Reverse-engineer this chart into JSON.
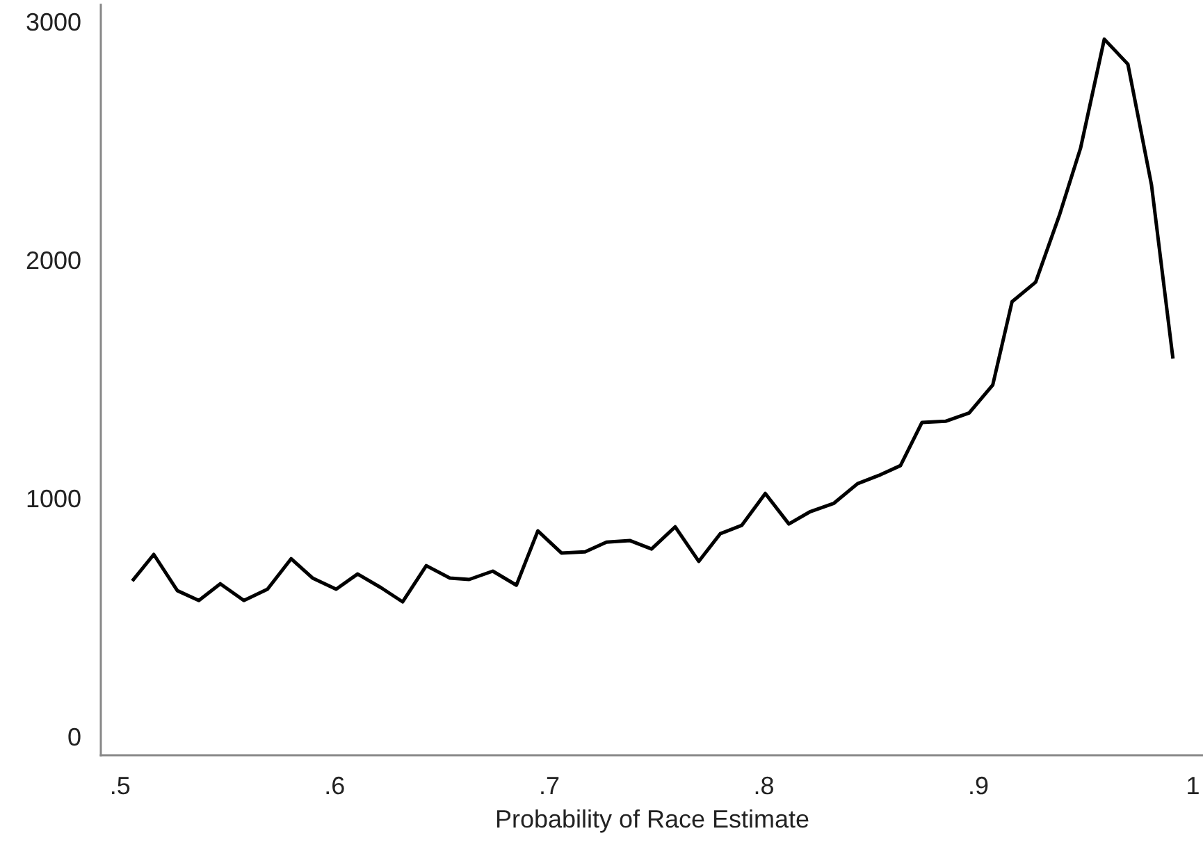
{
  "chart_data": {
    "type": "line",
    "xlabel": "Probability of Race Estimate",
    "x": [
      0.506,
      0.516,
      0.527,
      0.537,
      0.547,
      0.558,
      0.569,
      0.58,
      0.59,
      0.601,
      0.611,
      0.622,
      0.632,
      0.643,
      0.654,
      0.663,
      0.674,
      0.685,
      0.695,
      0.706,
      0.717,
      0.727,
      0.738,
      0.748,
      0.759,
      0.77,
      0.78,
      0.79,
      0.801,
      0.812,
      0.822,
      0.833,
      0.844,
      0.854,
      0.864,
      0.874,
      0.885,
      0.896,
      0.907,
      0.916,
      0.927,
      0.938,
      0.948,
      0.959,
      0.97,
      0.981,
      0.991
    ],
    "series": [
      {
        "color": "#000000",
        "values": [
          659,
          770,
          618,
          577,
          647,
          577,
          624,
          752,
          671,
          624,
          688,
          630,
          571,
          723,
          671,
          665,
          700,
          641,
          869,
          776,
          781,
          822,
          828,
          793,
          886,
          741,
          857,
          892,
          1026,
          898,
          950,
          985,
          1067,
          1102,
          1143,
          1324,
          1329,
          1364,
          1481,
          1831,
          1913,
          2192,
          2478,
          2933,
          2828,
          2321,
          1592
        ]
      }
    ],
    "xlim": [
      0.491,
      1.005
    ],
    "xticks": [
      {
        "value": 0.5,
        "label": ".5"
      },
      {
        "value": 0.6,
        "label": ".6"
      },
      {
        "value": 0.7,
        "label": ".7"
      },
      {
        "value": 0.8,
        "label": ".8"
      },
      {
        "value": 0.9,
        "label": ".9"
      },
      1
    ],
    "ylim": [
      -70,
      3080
    ],
    "yticks": [
      0,
      1000,
      2000,
      3000
    ],
    "grid": false,
    "marker": "none",
    "line_style": "solid"
  }
}
